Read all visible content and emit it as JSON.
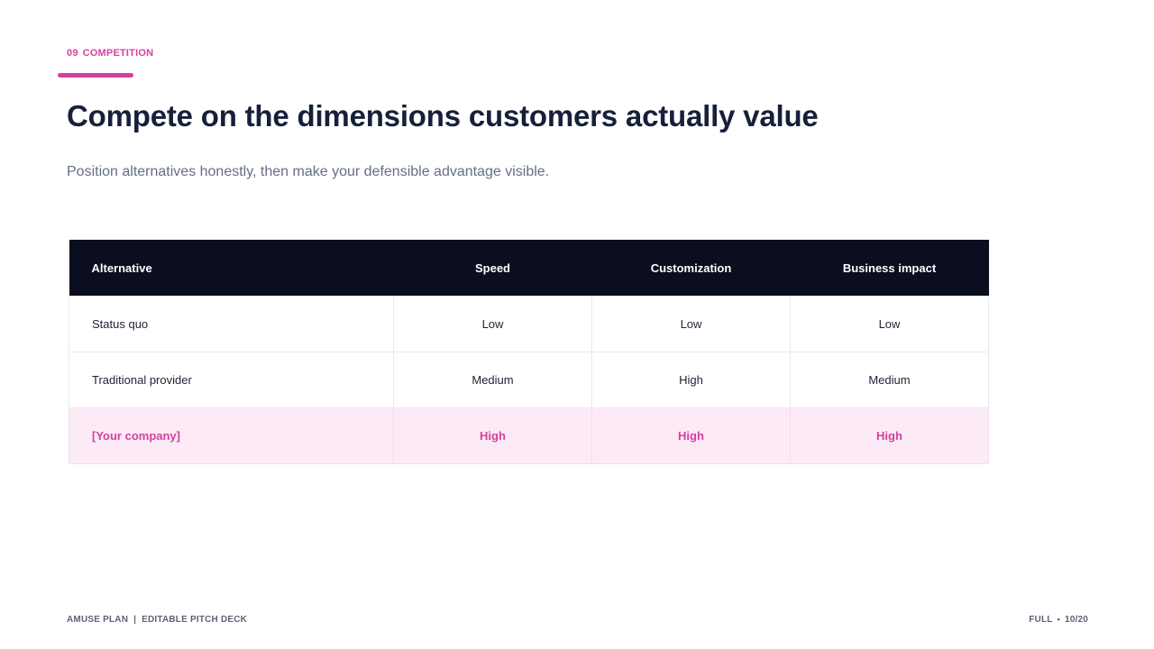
{
  "section": {
    "number": "09",
    "label": "COMPETITION"
  },
  "title": "Compete on the dimensions customers actually value",
  "subtitle": "Position alternatives honestly, then make your defensible advantage visible.",
  "table": {
    "headers": [
      "Alternative",
      "Speed",
      "Customization",
      "Business impact"
    ],
    "rows": [
      [
        "Status quo",
        "Low",
        "Low",
        "Low"
      ],
      [
        "Traditional provider",
        "Medium",
        "High",
        "Medium"
      ],
      [
        "[Your company]",
        "High",
        "High",
        "High"
      ]
    ]
  },
  "footer": {
    "brand": "AMUSE PLAN",
    "separator": "|",
    "deck": "EDITABLE PITCH DECK",
    "mode": "FULL",
    "dot": "•",
    "page": "10/20"
  },
  "colors": {
    "accent": "#d6409f",
    "header_bg": "#0a0e1f",
    "highlight_bg": "#fcebf6",
    "title": "#16203a"
  }
}
